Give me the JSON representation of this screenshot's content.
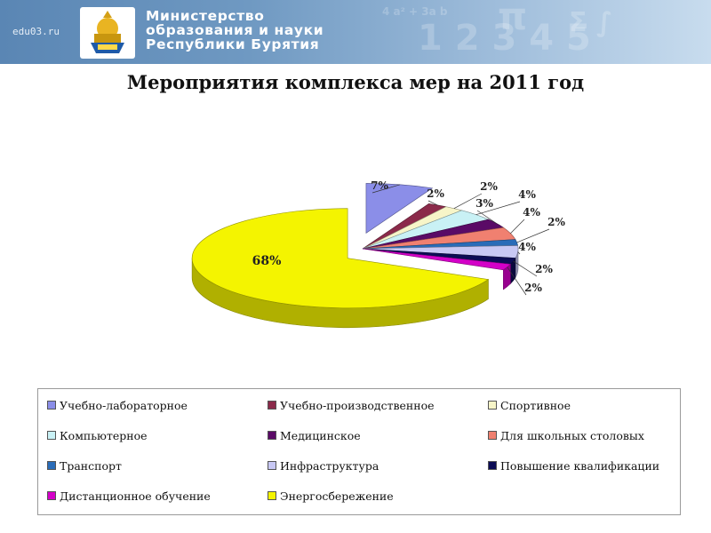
{
  "header": {
    "site_url": "edu03.ru",
    "ministry_lines": [
      "Министерство",
      "образования и науки",
      "Республики Бурятия"
    ]
  },
  "slide": {
    "title": "Мероприятия комплекса мер на 2011 год"
  },
  "chart_data": {
    "type": "pie",
    "title": "Мероприятия комплекса мер на 2011 год",
    "legend_position": "bottom",
    "slices": [
      {
        "name": "Учебно-лабораторное",
        "label": "7%",
        "value": 7,
        "color": "#8b8ee8"
      },
      {
        "name": "Учебно-производственное",
        "label": "2%",
        "value": 2,
        "color": "#8b2a4a"
      },
      {
        "name": "Спортивное",
        "label": "2%",
        "value": 2,
        "color": "#f7f5c8"
      },
      {
        "name": "Компьютерное",
        "label": "4%",
        "value": 4,
        "color": "#c9f1f5"
      },
      {
        "name": "Медицинское",
        "label": "3%",
        "value": 3,
        "color": "#5a0a66"
      },
      {
        "name": "Для школьных столовых",
        "label": "4%",
        "value": 4,
        "color": "#f08070"
      },
      {
        "name": "Транспорт",
        "label": "2%",
        "value": 2,
        "color": "#2a6cb8"
      },
      {
        "name": "Инфраструктура",
        "label": "4%",
        "value": 4,
        "color": "#c8c8f4"
      },
      {
        "name": "Повышение квалификации",
        "label": "2%",
        "value": 2,
        "color": "#0c0c55"
      },
      {
        "name": "Дистанционное обучение",
        "label": "2%",
        "value": 2,
        "color": "#d400c8"
      },
      {
        "name": "Энергосбережение",
        "label": "68%",
        "value": 68,
        "color": "#f4f400"
      }
    ]
  }
}
